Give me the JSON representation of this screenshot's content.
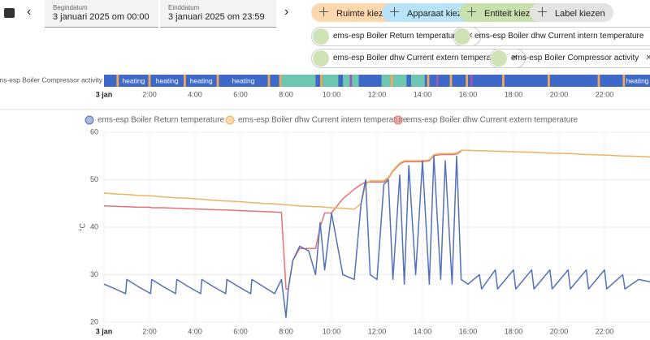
{
  "header": {
    "start_label": "Begindatum",
    "start_value": "3 januari 2025 om 00:00",
    "end_label": "Einddatum",
    "end_value": "3 januari 2025 om 23:59"
  },
  "filters": [
    {
      "text": "Ruimte kiezen",
      "color": "#fdd7ad"
    },
    {
      "text": "Apparaat kiezen",
      "color": "#b9e3f8"
    },
    {
      "text": "Entiteit kiezen",
      "color": "#c8dfae"
    },
    {
      "text": "Label kiezen",
      "color": "#e3e3e3"
    }
  ],
  "entities": [
    "ems-esp Boiler Return temperature",
    "ems-esp Boiler dhw Current intern temperature",
    "ems-esp Boiler dhw Current extern temperature",
    "ems-esp Boiler Compressor activity"
  ],
  "timeline": {
    "label": "ems-esp Boiler Compressor activity",
    "base_color": "#3f69c9",
    "segments": [
      {
        "start": 7.8,
        "end": 9.3,
        "color": "#6cc6b0"
      },
      {
        "start": 9.6,
        "end": 10.3,
        "color": "#6cc6b0"
      },
      {
        "start": 10.5,
        "end": 11.2,
        "color": "#6cc6b0"
      },
      {
        "start": 12.2,
        "end": 13.3,
        "color": "#6cc6b0"
      },
      {
        "start": 13.5,
        "end": 14.1,
        "color": "#6cc6b0"
      },
      {
        "start": 0.55,
        "end": 0.65,
        "color": "#f2a65a"
      },
      {
        "start": 1.95,
        "end": 2.05,
        "color": "#f2a65a"
      },
      {
        "start": 3.5,
        "end": 3.6,
        "color": "#f2a65a"
      },
      {
        "start": 4.95,
        "end": 5.05,
        "color": "#f2a65a"
      },
      {
        "start": 7.2,
        "end": 7.3,
        "color": "#f2a65a"
      },
      {
        "start": 7.7,
        "end": 7.8,
        "color": "#f2a65a"
      },
      {
        "start": 9.5,
        "end": 9.6,
        "color": "#f2a65a"
      },
      {
        "start": 12.6,
        "end": 12.7,
        "color": "#f2a65a"
      },
      {
        "start": 14.2,
        "end": 14.3,
        "color": "#f2a65a"
      },
      {
        "start": 15.2,
        "end": 15.3,
        "color": "#f2a65a"
      },
      {
        "start": 15.9,
        "end": 16.0,
        "color": "#f2a65a"
      },
      {
        "start": 17.5,
        "end": 17.6,
        "color": "#f2a65a"
      },
      {
        "start": 19.5,
        "end": 19.6,
        "color": "#f2a65a"
      },
      {
        "start": 21.7,
        "end": 21.8,
        "color": "#f2a65a"
      },
      {
        "start": 22.8,
        "end": 22.9,
        "color": "#f2a65a"
      },
      {
        "start": 10.8,
        "end": 10.9,
        "color": "#9b59b6"
      },
      {
        "start": 14.6,
        "end": 14.7,
        "color": "#9b59b6"
      },
      {
        "start": 16.1,
        "end": 16.2,
        "color": "#9b59b6"
      }
    ],
    "labels": [
      {
        "start": 0.65,
        "end": 1.95,
        "text": "heating"
      },
      {
        "start": 2.05,
        "end": 3.5,
        "text": "heating"
      },
      {
        "start": 3.6,
        "end": 4.95,
        "text": "heating"
      },
      {
        "start": 5.05,
        "end": 7.2,
        "text": "heating"
      },
      {
        "start": 22.9,
        "end": 24,
        "text": "heating"
      }
    ]
  },
  "chart_data": {
    "type": "line",
    "y_label": "°C",
    "xlim": [
      0,
      24
    ],
    "ylim": [
      20,
      60
    ],
    "grid": true,
    "xticks": [
      {
        "value": 0,
        "label": "3 jan"
      },
      {
        "value": 2,
        "label": "2:00"
      },
      {
        "value": 4,
        "label": "4:00"
      },
      {
        "value": 6,
        "label": "6:00"
      },
      {
        "value": 8,
        "label": "8:00"
      },
      {
        "value": 10,
        "label": "10:00"
      },
      {
        "value": 12,
        "label": "12:00"
      },
      {
        "value": 14,
        "label": "14:00"
      },
      {
        "value": 16,
        "label": "16:00"
      },
      {
        "value": 18,
        "label": "18:00"
      },
      {
        "value": 20,
        "label": "20:00"
      },
      {
        "value": 22,
        "label": "22:00"
      }
    ],
    "yticks": [
      20,
      30,
      40,
      50,
      60
    ],
    "x": [
      0,
      0.5,
      0.95,
      1.0,
      1.5,
      2.05,
      2.1,
      2.6,
      3.15,
      3.2,
      3.7,
      4.25,
      4.3,
      4.8,
      5.35,
      5.4,
      5.9,
      6.45,
      6.5,
      7.0,
      7.5,
      7.8,
      8.0,
      8.1,
      8.3,
      8.6,
      9.0,
      9.3,
      9.5,
      9.7,
      10.0,
      10.5,
      11.0,
      11.3,
      11.5,
      11.7,
      12.0,
      12.3,
      12.5,
      12.7,
      13.0,
      13.2,
      13.4,
      13.7,
      14.0,
      14.3,
      14.5,
      14.8,
      15.0,
      15.3,
      15.5,
      15.7,
      16.0,
      16.5,
      16.6,
      17.2,
      17.3,
      18.0,
      18.1,
      18.8,
      18.9,
      19.6,
      19.7,
      20.4,
      20.5,
      21.2,
      21.3,
      22.0,
      22.1,
      22.8,
      22.9,
      23.5,
      24
    ],
    "series": [
      {
        "name": "ems-esp Boiler Return temperature",
        "color": "#5571b8",
        "values": [
          28,
          27,
          26,
          29,
          27.5,
          26,
          29,
          27.5,
          26,
          29,
          27.5,
          26,
          29,
          27.5,
          26,
          29,
          27.5,
          26,
          29,
          27.5,
          26,
          29,
          21,
          27,
          33,
          36,
          35,
          30,
          41,
          31,
          43,
          30,
          29,
          45,
          50,
          30,
          29,
          49,
          50,
          29,
          51,
          28,
          53,
          30,
          54,
          28,
          55,
          29,
          54,
          28,
          55,
          29,
          28,
          30,
          27,
          31,
          27,
          31,
          27,
          31,
          27,
          31,
          27,
          31,
          27,
          31,
          27,
          31,
          27,
          30,
          27,
          29,
          28.5
        ]
      },
      {
        "name": "ems-esp Boiler dhw Current intern temperature",
        "color": "#ebb561",
        "values": [
          47.2,
          47.0,
          46.9,
          46.9,
          46.7,
          46.6,
          46.6,
          46.4,
          46.2,
          46.2,
          46.1,
          45.9,
          45.9,
          45.7,
          45.5,
          45.5,
          45.4,
          45.2,
          45.2,
          45.0,
          44.9,
          44.8,
          44.7,
          44.7,
          44.6,
          44.5,
          44.4,
          44.3,
          44.3,
          44.2,
          44.1,
          44.0,
          43.8,
          45,
          49,
          49.8,
          49.8,
          49.8,
          50.5,
          52,
          53.5,
          54,
          54,
          54,
          54,
          54.2,
          55.3,
          55.5,
          55.5,
          55.5,
          55.6,
          56.2,
          56.2,
          56.1,
          56.1,
          56.0,
          56.0,
          55.9,
          55.9,
          55.8,
          55.8,
          55.6,
          55.6,
          55.5,
          55.5,
          55.3,
          55.3,
          55.2,
          55.2,
          55.0,
          55.0,
          54.9,
          54.8
        ]
      },
      {
        "name": "ems-esp Boiler dhw Current extern temperature",
        "color": "#e57373",
        "values": [
          44.5,
          44.4,
          44.3,
          44.3,
          44.2,
          44.2,
          44.1,
          44.1,
          44.0,
          44.0,
          43.9,
          43.8,
          43.8,
          43.7,
          43.6,
          43.6,
          43.5,
          43.4,
          43.4,
          43.3,
          43.2,
          43.1,
          27,
          27,
          33,
          35.5,
          35.5,
          35.5,
          40,
          43,
          43,
          46,
          48,
          49,
          49.5,
          49.5,
          49.5,
          49.5,
          50.3,
          51.8,
          53.3,
          53.8,
          53.8,
          53.8,
          53.8,
          54,
          55.1,
          55.3,
          55.3,
          55.3,
          55.4,
          56,
          null,
          null,
          null,
          null,
          null,
          null,
          null,
          null,
          null,
          null,
          null,
          null,
          null,
          null,
          null,
          null,
          null,
          null,
          null,
          null,
          null
        ]
      }
    ]
  }
}
